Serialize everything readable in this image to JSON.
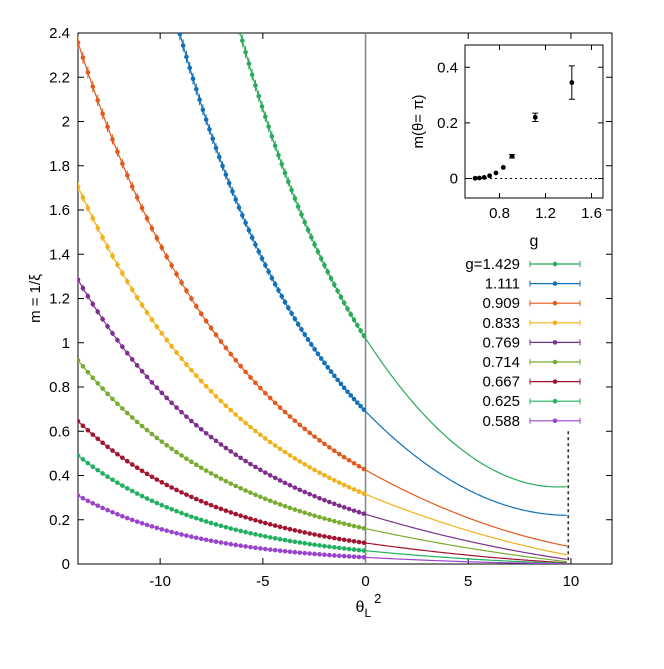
{
  "chart_data": [
    {
      "type": "scatter",
      "title": "",
      "xlabel": "θ_L²",
      "xlabel_main": "θ",
      "xlabel_sub": "L",
      "xlabel_sup": "2",
      "ylabel": "m = 1/ξ",
      "xlim": [
        -14,
        12
      ],
      "ylim": [
        0,
        2.4
      ],
      "xticks": [
        -10,
        -5,
        0,
        5,
        10
      ],
      "xtick_labels": [
        "-10",
        "-5",
        "0",
        "5",
        "10"
      ],
      "yticks": [
        0,
        0.2,
        0.4,
        0.6,
        0.8,
        1,
        1.2,
        1.4,
        1.6,
        1.8,
        2,
        2.2,
        2.4
      ],
      "ytick_labels": [
        "0",
        "0.2",
        "0.4",
        "0.6",
        "0.8",
        "1",
        "1.2",
        "1.4",
        "1.6",
        "1.8",
        "2",
        "2.2",
        "2.4"
      ],
      "vertical_lines": [
        {
          "x": 0,
          "style": "solid"
        },
        {
          "x": 9.87,
          "style": "dotted",
          "y_top": 0.6
        }
      ],
      "legend_position": "right",
      "data_x_range": [
        -14,
        0
      ],
      "fit_x_range": [
        -14,
        9.87
      ],
      "series": [
        {
          "name": "g=1.429",
          "color": "#2aaa5a",
          "at_zero": 1.02,
          "at_pi2": 0.35,
          "slope_at_zero": -0.143
        },
        {
          "name": "1.111",
          "color": "#1170b8",
          "at_zero": 0.69,
          "at_pi2": 0.22,
          "slope_at_zero": -0.095
        },
        {
          "name": "0.909",
          "color": "#e05a1c",
          "at_zero": 0.425,
          "at_pi2": 0.08,
          "slope_at_zero": -0.052
        },
        {
          "name": "0.833",
          "color": "#f2b118",
          "at_zero": 0.315,
          "at_pi2": 0.04,
          "slope_at_zero": -0.038
        },
        {
          "name": "0.769",
          "color": "#7e2f8e",
          "at_zero": 0.225,
          "at_pi2": 0.02,
          "slope_at_zero": -0.028
        },
        {
          "name": "0.714",
          "color": "#77ac30",
          "at_zero": 0.16,
          "at_pi2": 0.01,
          "slope_at_zero": -0.02
        },
        {
          "name": "0.667",
          "color": "#a2142f",
          "at_zero": 0.095,
          "at_pi2": 0.005,
          "slope_at_zero": -0.013
        },
        {
          "name": "0.625",
          "color": "#20b060",
          "at_zero": 0.06,
          "at_pi2": 0.003,
          "slope_at_zero": -0.009
        },
        {
          "name": "0.588",
          "color": "#9944cc",
          "at_zero": 0.03,
          "at_pi2": 0.001,
          "slope_at_zero": -0.005
        }
      ]
    },
    {
      "type": "scatter",
      "title": "",
      "xlabel": "g",
      "ylabel": "m(θ= π)",
      "xlim": [
        0.5,
        1.7
      ],
      "ylim": [
        -0.07,
        0.48
      ],
      "xticks": [
        0.8,
        1.2,
        1.6
      ],
      "xtick_labels": [
        "0.8",
        "1.2",
        "1.6"
      ],
      "yticks": [
        0,
        0.2,
        0.4
      ],
      "ytick_labels": [
        "0",
        "0.2",
        "0.4"
      ],
      "reference_line": {
        "y": 0,
        "style": "dotted"
      },
      "points": [
        {
          "g": 0.588,
          "m": 0.001,
          "err": 0.002
        },
        {
          "g": 0.625,
          "m": 0.002,
          "err": 0.002
        },
        {
          "g": 0.667,
          "m": 0.004,
          "err": 0.002
        },
        {
          "g": 0.714,
          "m": 0.01,
          "err": 0.003
        },
        {
          "g": 0.769,
          "m": 0.02,
          "err": 0.004
        },
        {
          "g": 0.833,
          "m": 0.04,
          "err": 0.005
        },
        {
          "g": 0.909,
          "m": 0.08,
          "err": 0.006
        },
        {
          "g": 1.111,
          "m": 0.22,
          "err": 0.015
        },
        {
          "g": 1.429,
          "m": 0.345,
          "err": 0.06
        }
      ]
    }
  ]
}
